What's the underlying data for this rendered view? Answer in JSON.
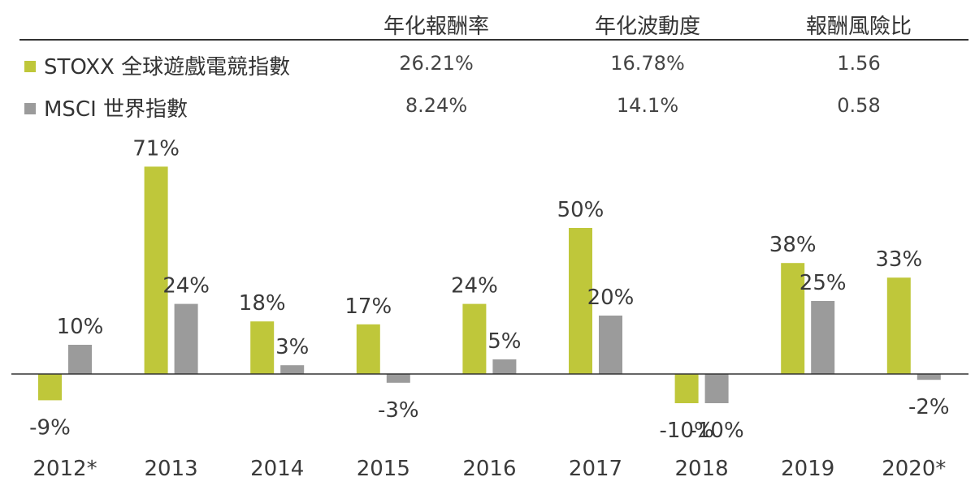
{
  "stats_table": {
    "columns": [
      "年化報酬率",
      "年化波動度",
      "報酬風險比"
    ],
    "rows": [
      {
        "label": "STOXX 全球遊戲電競指數",
        "values": [
          "26.21%",
          "16.78%",
          "1.56"
        ]
      },
      {
        "label": "MSCI 世界指數",
        "values": [
          "8.24%",
          "14.1%",
          "0.58"
        ]
      }
    ]
  },
  "chart_data": {
    "type": "bar",
    "categories": [
      "2012*",
      "2013",
      "2014",
      "2015",
      "2016",
      "2017",
      "2018",
      "2019",
      "2020*"
    ],
    "series": [
      {
        "name": "STOXX 全球遊戲電競指數",
        "color": "#bfc73a",
        "values": [
          -9,
          71,
          18,
          17,
          24,
          50,
          -10,
          38,
          33
        ],
        "labels": [
          "-9%",
          "71%",
          "18%",
          "17%",
          "24%",
          "50%",
          "-10%",
          "38%",
          "33%"
        ]
      },
      {
        "name": "MSCI 世界指數",
        "color": "#9b9b9b",
        "values": [
          10,
          24,
          3,
          -3,
          5,
          20,
          -10,
          25,
          -2
        ],
        "labels": [
          "10%",
          "24%",
          "3%",
          "-3%",
          "5%",
          "20%",
          "-10%",
          "25%",
          "-2%"
        ]
      }
    ],
    "ylim": [
      -20,
      80
    ],
    "grid": false
  }
}
